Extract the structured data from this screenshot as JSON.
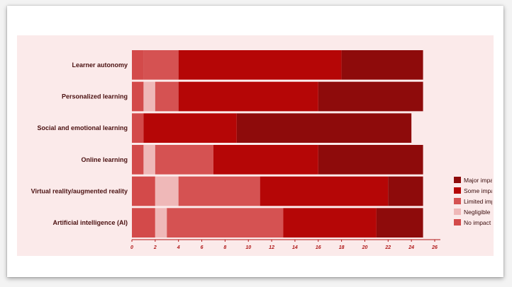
{
  "chart_data": {
    "type": "bar",
    "orientation": "horizontal",
    "stacked": true,
    "categories": [
      "Learner autonomy",
      "Personalized learning",
      "Social and emotional learning",
      "Online learning",
      "Virtual reality/augmented reality",
      "Artificial intelligence (AI)"
    ],
    "series": [
      {
        "name": "No impact",
        "color": "#d34a4a",
        "values": [
          1,
          1,
          1,
          1,
          2,
          2
        ]
      },
      {
        "name": "Negligible impact",
        "color": "#efb8b8",
        "values": [
          0,
          1,
          0,
          1,
          2,
          1
        ]
      },
      {
        "name": "Limited impact",
        "color": "#d55252",
        "values": [
          3,
          2,
          0,
          5,
          7,
          10
        ]
      },
      {
        "name": "Some impact",
        "color": "#b50606",
        "values": [
          14,
          12,
          8,
          9,
          11,
          8
        ]
      },
      {
        "name": "Major impact",
        "color": "#8e0b0b",
        "values": [
          7,
          9,
          15,
          9,
          3,
          4
        ]
      }
    ],
    "legend_order": [
      "Major impact",
      "Some impact",
      "Limited impact",
      "Negligible impact",
      "No impact"
    ],
    "legend_position": "right",
    "xlim": [
      0,
      26
    ],
    "xticks": [
      0,
      2,
      4,
      6,
      8,
      10,
      12,
      14,
      16,
      18,
      20,
      22,
      24,
      26
    ],
    "title": "",
    "xlabel": "",
    "ylabel": ""
  }
}
